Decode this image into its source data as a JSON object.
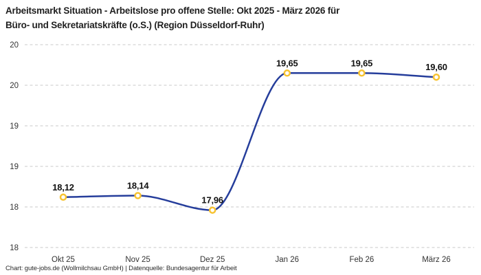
{
  "header": {
    "title_line1": "Arbeitsmarkt Situation - Arbeitslose pro offene Stelle: Okt 2025 - März 2026 für",
    "title_line2": "Büro- und Sekretariatskräfte (o.S.) (Region Düsseldorf-Ruhr)"
  },
  "footer": {
    "credit": "Chart: gute-jobs.de (Wollmilchsau GmbH) | Datenquelle: Bundesagentur für Arbeit"
  },
  "chart_data": {
    "type": "line",
    "title": "Arbeitsmarkt Situation - Arbeitslose pro offene Stelle: Okt 2025 - März 2026 für Büro- und Sekretariatskräfte (o.S.) (Region Düsseldorf-Ruhr)",
    "categories": [
      "Okt 25",
      "Nov 25",
      "Dez 25",
      "Jan 26",
      "Feb 26",
      "März 26"
    ],
    "values": [
      18.12,
      18.14,
      17.96,
      19.65,
      19.65,
      19.6
    ],
    "value_labels": [
      "18,12",
      "18,14",
      "17,96",
      "19,65",
      "19,65",
      "19,60"
    ],
    "xlabel": "",
    "ylabel": "",
    "ylim": [
      17.5,
      20.0
    ],
    "ytick_step": 0.5,
    "yticks": [
      {
        "value": 17.5,
        "label": "18"
      },
      {
        "value": 18.0,
        "label": "18"
      },
      {
        "value": 18.5,
        "label": "19"
      },
      {
        "value": 19.0,
        "label": "19"
      },
      {
        "value": 19.5,
        "label": "20"
      },
      {
        "value": 20.0,
        "label": "20"
      }
    ],
    "grid": "horizontal-dashed",
    "legend": "none",
    "curve": "monotone",
    "colors": {
      "line": "#253d9b",
      "marker_stroke": "#f7c331",
      "marker_fill": "#ffffff",
      "grid": "#c9c9c9",
      "tick_text": "#333333",
      "data_label": "#111111",
      "title_text": "#1f1f1f",
      "background": "#ffffff"
    }
  }
}
